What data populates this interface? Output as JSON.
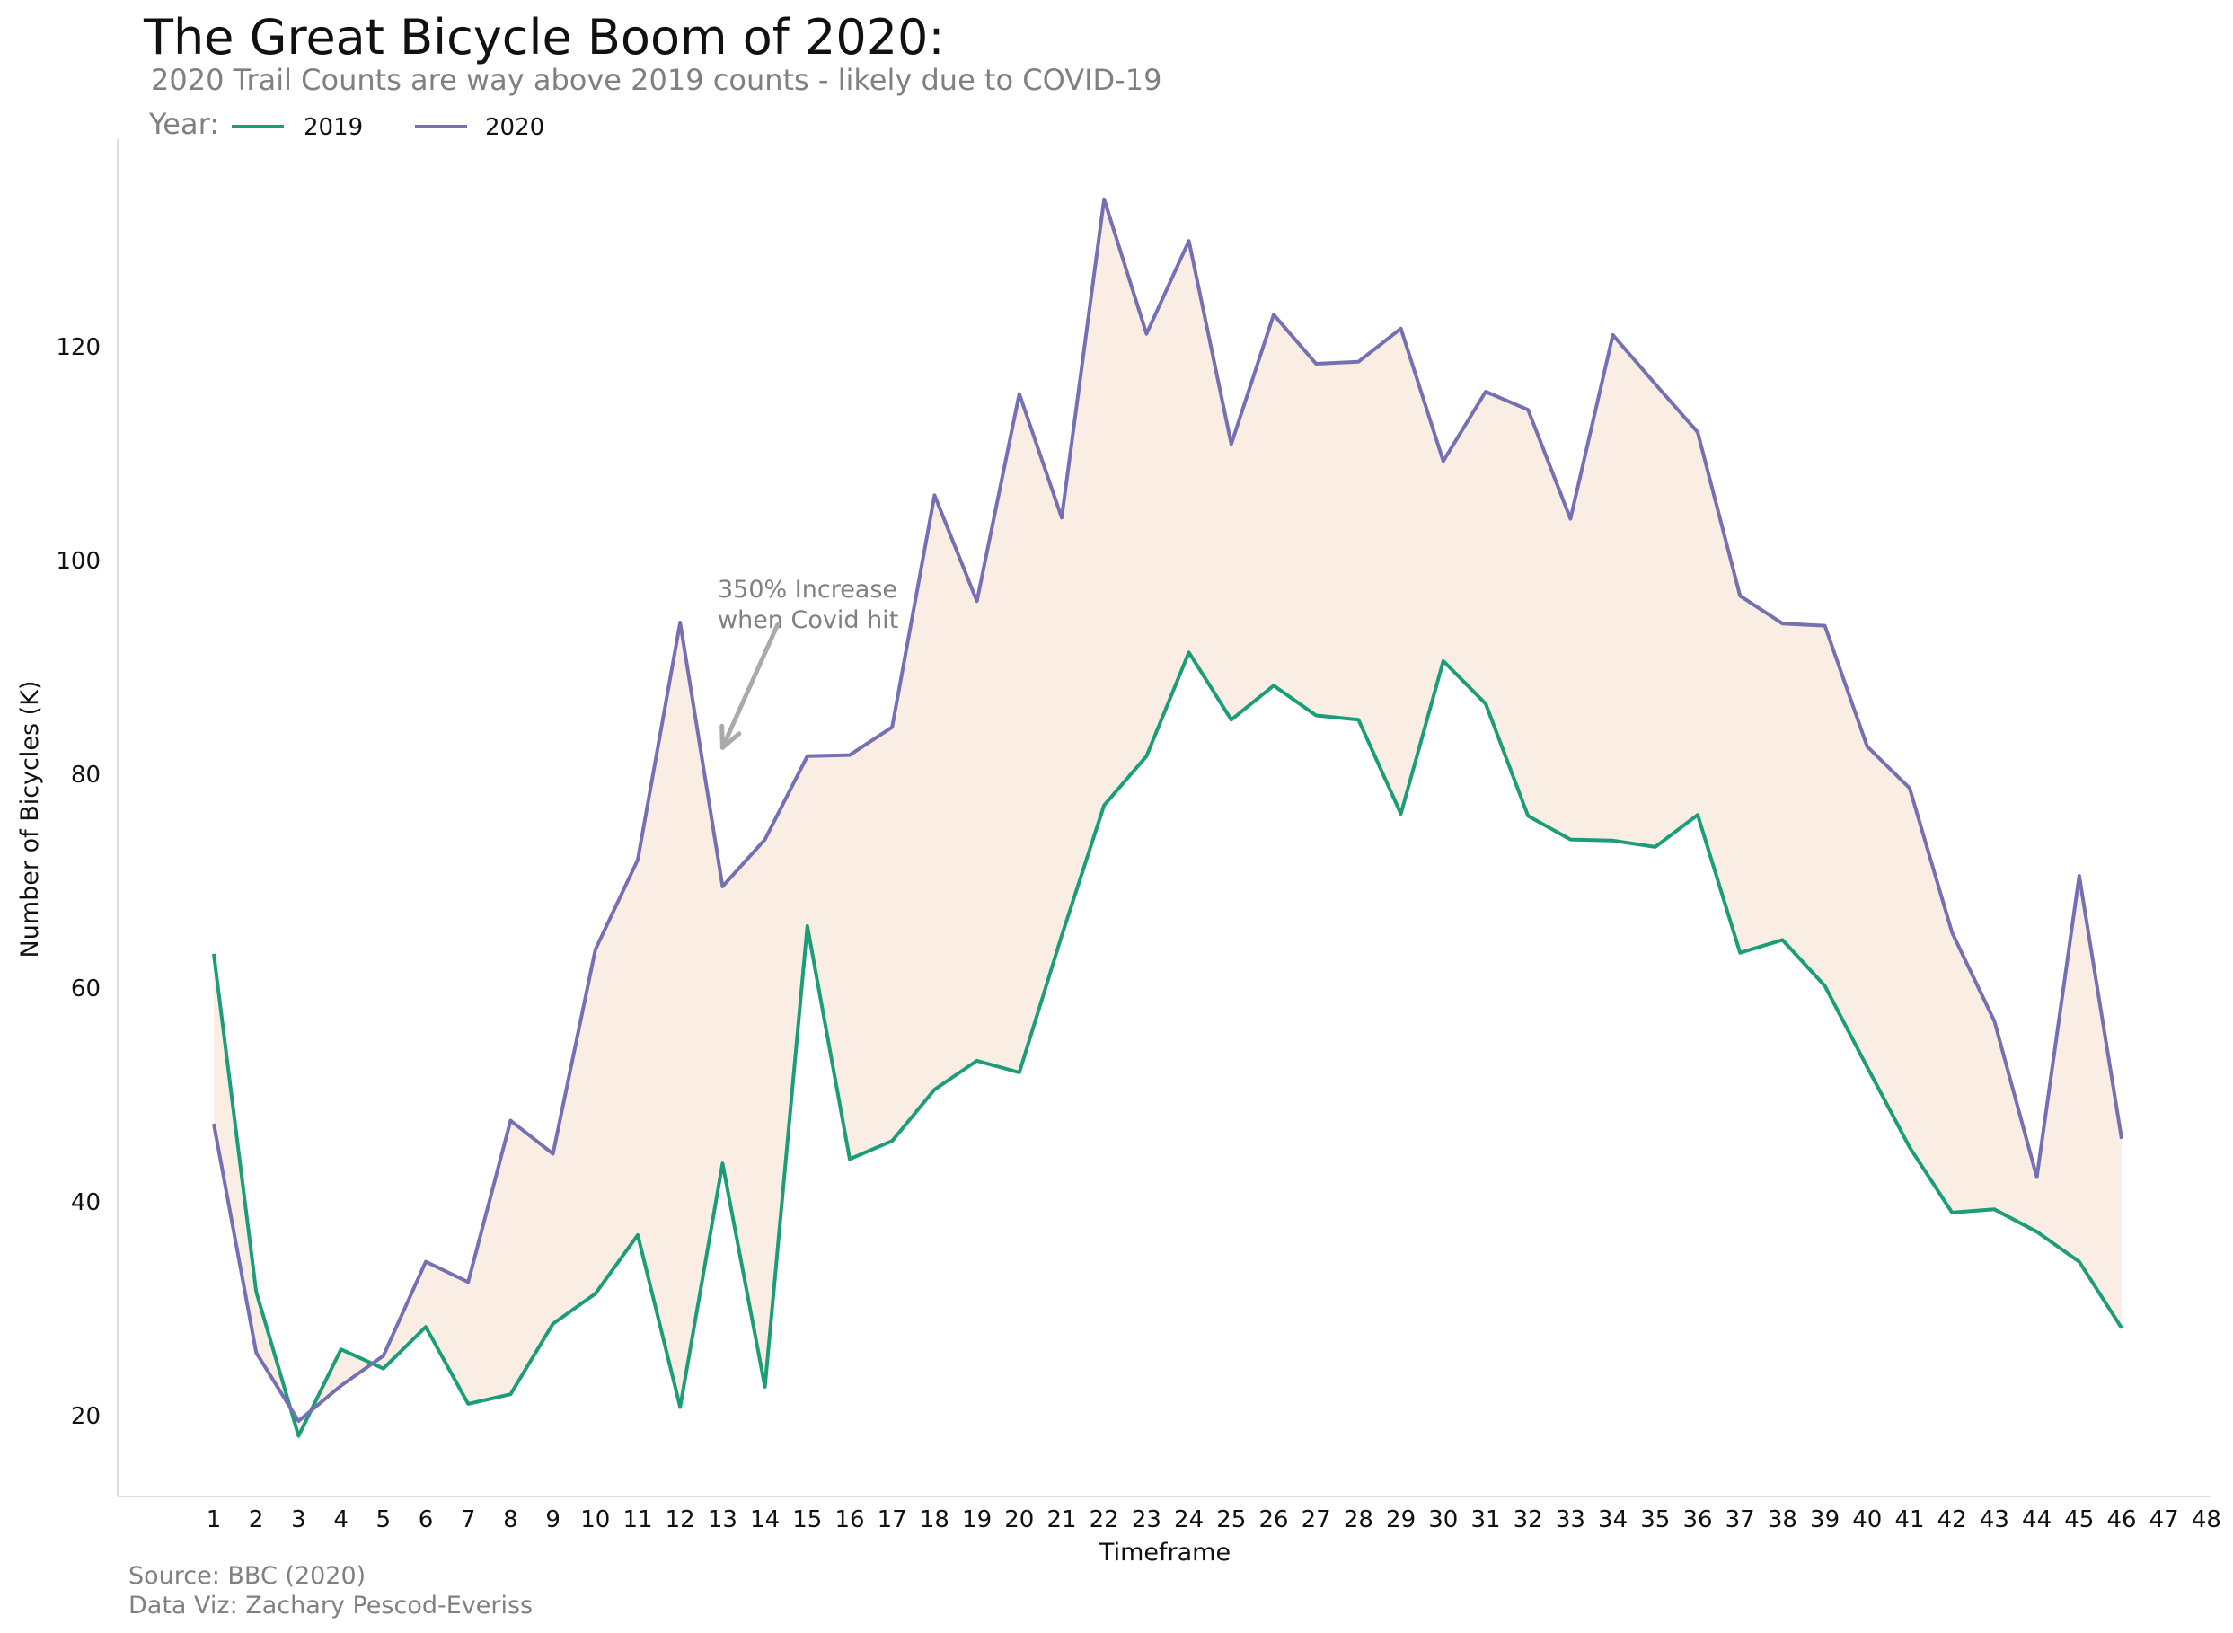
{
  "chart_data": {
    "type": "line",
    "title": "The Great Bicycle Boom of 2020:",
    "subtitle": "2020 Trail Counts are way above 2019 counts - likely due to COVID-19",
    "xlabel": "Timeframe",
    "ylabel": "Number of Bicycles (K)",
    "legend_title": "Year:",
    "legend_placement": "top-left",
    "grid": false,
    "fill_between_series": true,
    "xlim": [
      1,
      48
    ],
    "ylim": [
      13,
      140
    ],
    "x_ticks": [
      1,
      2,
      3,
      4,
      5,
      6,
      7,
      8,
      9,
      10,
      11,
      12,
      13,
      14,
      15,
      16,
      17,
      18,
      19,
      20,
      21,
      22,
      23,
      24,
      25,
      26,
      27,
      28,
      29,
      30,
      31,
      32,
      33,
      34,
      35,
      36,
      37,
      38,
      39,
      40,
      41,
      42,
      43,
      44,
      45,
      46,
      47,
      48
    ],
    "y_ticks": [
      20,
      40,
      60,
      80,
      100,
      120
    ],
    "x": [
      1,
      2,
      3,
      4,
      5,
      6,
      7,
      8,
      9,
      10,
      11,
      12,
      13,
      14,
      15,
      16,
      17,
      18,
      19,
      20,
      21,
      22,
      23,
      24,
      25,
      26,
      27,
      28,
      29,
      30,
      31,
      32,
      33,
      34,
      35,
      36,
      37,
      38,
      39,
      40,
      41,
      42,
      43,
      44,
      45,
      46
    ],
    "series": [
      {
        "name": "2019",
        "color": "#1b9e77",
        "values": [
          63.2,
          31.6,
          18.1,
          26.2,
          24.4,
          28.3,
          21.1,
          22.0,
          28.6,
          31.4,
          36.9,
          20.8,
          43.6,
          22.7,
          65.8,
          44.0,
          45.7,
          50.5,
          53.2,
          52.1,
          64.9,
          77.1,
          81.7,
          91.4,
          85.1,
          88.3,
          85.5,
          85.1,
          76.3,
          90.6,
          86.6,
          76.1,
          73.9,
          73.8,
          73.2,
          76.2,
          63.3,
          64.5,
          60.2,
          52.6,
          45.1,
          39.0,
          39.3,
          37.2,
          34.4,
          28.2
        ]
      },
      {
        "name": "2020",
        "color": "#7570b3",
        "values": [
          47.3,
          25.9,
          19.5,
          22.8,
          25.6,
          34.4,
          32.5,
          47.6,
          44.5,
          63.6,
          72.0,
          94.2,
          69.5,
          73.9,
          81.7,
          81.8,
          84.4,
          106.1,
          96.2,
          115.6,
          104.0,
          133.8,
          121.2,
          129.9,
          110.9,
          123.0,
          118.4,
          118.6,
          121.7,
          109.3,
          115.8,
          114.1,
          103.9,
          121.1,
          116.5,
          112.0,
          96.7,
          94.1,
          93.9,
          82.6,
          78.7,
          65.2,
          56.9,
          42.3,
          70.5,
          45.9
        ]
      }
    ],
    "fill_color": "#f9ede4",
    "annotations": [
      {
        "lines": [
          "350% Increase",
          "when Covid hit"
        ],
        "x": 13.5,
        "y": 97.4,
        "arrow_from": [
          14.3,
          94.0
        ],
        "arrow_to": [
          13.0,
          82.5
        ],
        "color": "#808080",
        "arrow_color": "#aaaaaa"
      }
    ]
  },
  "source": {
    "line1": "Source: BBC (2020)",
    "line2": "Data Viz: Zachary Pescod-Everiss"
  }
}
